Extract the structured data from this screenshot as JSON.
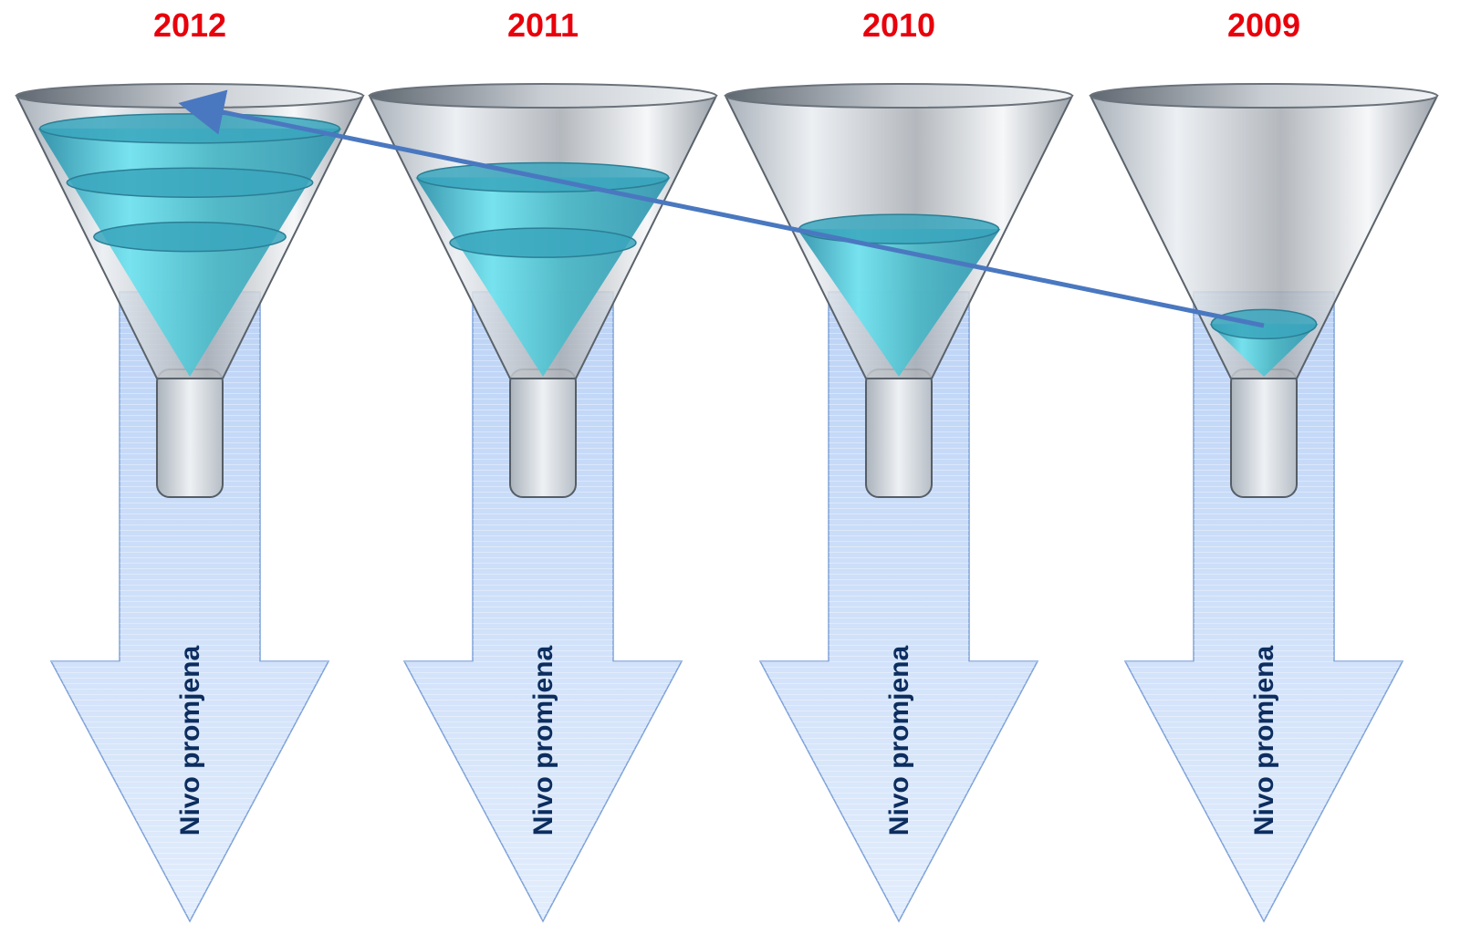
{
  "columns": [
    {
      "year": "2012",
      "arrow_label": "Nivo promjena",
      "fill_level": 0.92,
      "bands": 3
    },
    {
      "year": "2011",
      "arrow_label": "Nivo promjena",
      "fill_level": 0.74,
      "bands": 2
    },
    {
      "year": "2010",
      "arrow_label": "Nivo promjena",
      "fill_level": 0.55,
      "bands": 1
    },
    {
      "year": "2009",
      "arrow_label": "Nivo promjena",
      "fill_level": 0.2,
      "bands": 1
    }
  ],
  "colors": {
    "year_text": "#e8000b",
    "arrow_text": "#0c2d5e",
    "liquid": "#4fbfd0",
    "trend_line": "#4a78c0",
    "arrow_fill": "#c9dcf7"
  },
  "trend_arrow": {
    "from_year": "2009",
    "to_year": "2012"
  }
}
